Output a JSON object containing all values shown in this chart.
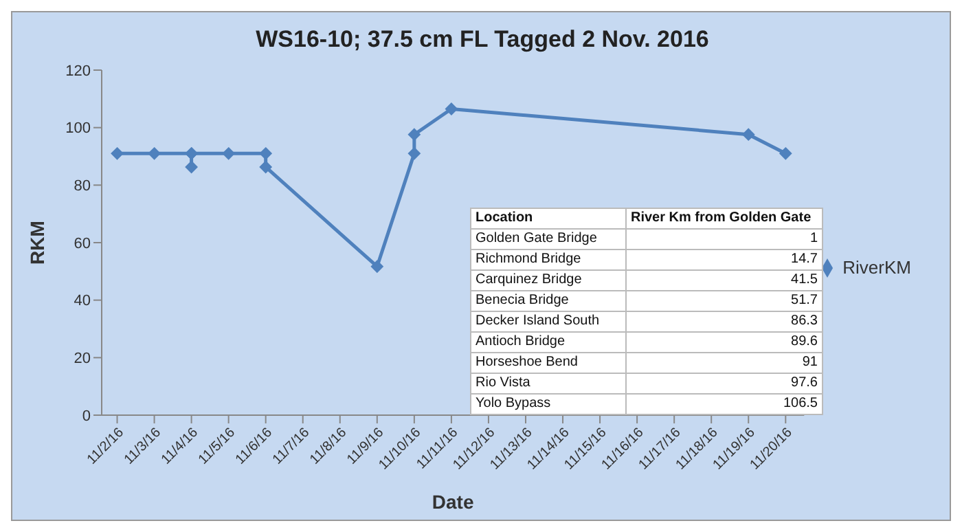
{
  "chart_data": [
    {
      "type": "line",
      "title": "WS16-10; 37.5 cm FL Tagged 2 Nov. 2016",
      "xlabel": "Date",
      "ylabel": "RKM",
      "series": [
        {
          "name": "RiverKM",
          "color": "#4f81bd",
          "x": [
            "2016-11-02",
            "2016-11-03",
            "2016-11-04",
            "2016-11-04",
            "2016-11-04",
            "2016-11-05",
            "2016-11-06",
            "2016-11-06",
            "2016-11-09",
            "2016-11-10",
            "2016-11-10",
            "2016-11-11",
            "2016-11-19",
            "2016-11-20"
          ],
          "values": [
            91,
            91,
            91,
            86.3,
            91,
            91,
            91,
            86.3,
            51.7,
            91,
            97.6,
            106.5,
            97.6,
            91
          ]
        }
      ],
      "xlim": [
        "2016-11-01T14:00",
        "2016-11-20T12:00"
      ],
      "xticks": [
        {
          "value": "2016-11-02",
          "label": "11/2/16"
        },
        {
          "value": "2016-11-03",
          "label": "11/3/16"
        },
        {
          "value": "2016-11-04",
          "label": "11/4/16"
        },
        {
          "value": "2016-11-05",
          "label": "11/5/16"
        },
        {
          "value": "2016-11-06",
          "label": "11/6/16"
        },
        {
          "value": "2016-11-07",
          "label": "11/7/16"
        },
        {
          "value": "2016-11-08",
          "label": "11/8/16"
        },
        {
          "value": "2016-11-09",
          "label": "11/9/16"
        },
        {
          "value": "2016-11-10",
          "label": "11/10/16"
        },
        {
          "value": "2016-11-11",
          "label": "11/11/16"
        },
        {
          "value": "2016-11-12",
          "label": "11/12/16"
        },
        {
          "value": "2016-11-13",
          "label": "11/13/16"
        },
        {
          "value": "2016-11-14",
          "label": "11/14/16"
        },
        {
          "value": "2016-11-15",
          "label": "11/15/16"
        },
        {
          "value": "2016-11-16",
          "label": "11/16/16"
        },
        {
          "value": "2016-11-17",
          "label": "11/17/16"
        },
        {
          "value": "2016-11-18",
          "label": "11/18/16"
        },
        {
          "value": "2016-11-19",
          "label": "11/19/16"
        },
        {
          "value": "2016-11-20",
          "label": "11/20/16"
        }
      ],
      "ylim": [
        0,
        120
      ],
      "yticks": [
        0,
        20,
        40,
        60,
        80,
        100,
        120
      ],
      "grid": false,
      "legend": "right",
      "marker": "diamond",
      "line_style": "solid"
    },
    {
      "type": "other",
      "xlabel": "Location",
      "ylabel": "River Km from Golden Gate",
      "categories": [
        "Golden Gate Bridge",
        "Richmond Bridge",
        "Carquinez Bridge",
        "Benecia Bridge",
        "Decker Island South",
        "Antioch Bridge",
        "Horseshoe Bend",
        "Rio Vista",
        "Yolo Bypass"
      ],
      "values": [
        1,
        14.7,
        41.5,
        51.7,
        86.3,
        89.6,
        91,
        97.6,
        106.5
      ],
      "data_labels": true
    }
  ]
}
